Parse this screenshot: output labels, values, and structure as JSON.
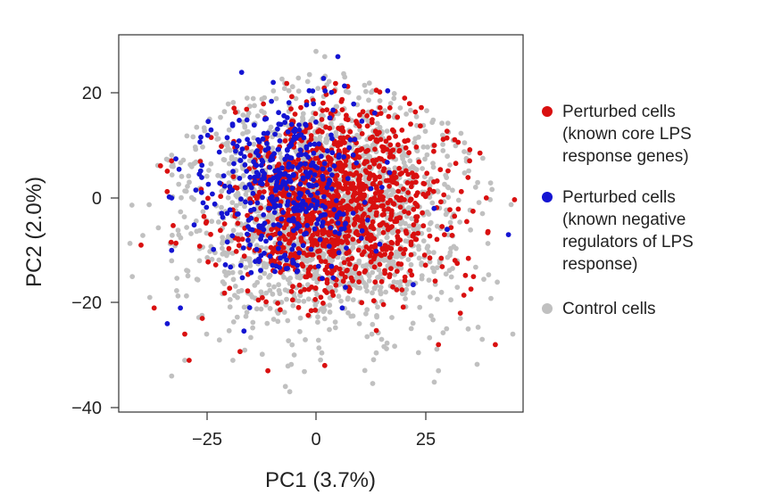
{
  "chart_data": {
    "type": "scatter",
    "title": "",
    "xlabel": "PC1 (3.7%)",
    "ylabel": "PC2 (2.0%)",
    "xlim": [
      -45,
      48
    ],
    "ylim": [
      -41,
      31
    ],
    "xticks": [
      -25,
      0,
      25
    ],
    "yticks": [
      20,
      0,
      -20,
      -40
    ],
    "xtick_labels": [
      "−25",
      "0",
      "25"
    ],
    "ytick_labels": [
      "20",
      "0",
      "−20",
      "−40"
    ],
    "grid": false,
    "legend_position": "right",
    "series": [
      {
        "name": "Control cells",
        "color": "#c0c0c0",
        "cluster": {
          "center": [
            2,
            -3
          ],
          "spread": [
            15,
            11
          ],
          "count": 1900,
          "seed": 11
        },
        "points": [
          [
            -33,
            -34
          ],
          [
            -30,
            -31
          ],
          [
            -25,
            -26
          ],
          [
            -19,
            -31
          ],
          [
            -6,
            -37
          ],
          [
            -7,
            -36
          ],
          [
            0,
            28
          ],
          [
            2,
            27
          ],
          [
            15,
            -27
          ],
          [
            28,
            -33
          ],
          [
            33,
            -23
          ],
          [
            38,
            -27
          ],
          [
            45,
            -26
          ],
          [
            -42,
            -15
          ],
          [
            -38,
            -19
          ],
          [
            -33,
            -12
          ]
        ]
      },
      {
        "name": "Perturbed cells (known core LPS response genes)",
        "color": "#d90f0f",
        "cluster": {
          "center": [
            4,
            -1
          ],
          "spread": [
            12,
            8.5
          ],
          "count": 1250,
          "seed": 29
        },
        "points": [
          [
            -40,
            -9
          ],
          [
            -37,
            -21
          ],
          [
            -29,
            -31
          ],
          [
            -11,
            -33
          ],
          [
            2,
            -32
          ],
          [
            28,
            -28
          ],
          [
            33,
            -22
          ],
          [
            36,
            -15
          ],
          [
            41,
            -28
          ],
          [
            -30,
            -26
          ],
          [
            -26,
            -23
          ]
        ]
      },
      {
        "name": "Perturbed cells (known negative regulators of LPS response)",
        "color": "#1414d2",
        "cluster": {
          "center": [
            -7,
            2
          ],
          "spread": [
            9,
            8
          ],
          "count": 420,
          "seed": 53
        },
        "points": [
          [
            -17,
            24
          ],
          [
            5,
            27
          ],
          [
            -24,
            13
          ],
          [
            -33,
            0
          ],
          [
            -33,
            -10
          ],
          [
            -34,
            -24
          ],
          [
            -31,
            -21
          ],
          [
            44,
            -7
          ],
          [
            6,
            -21
          ],
          [
            27,
            -2
          ],
          [
            30,
            -6
          ]
        ]
      }
    ]
  },
  "legend": {
    "core": [
      "Perturbed cells",
      "(known core LPS",
      "response genes)"
    ],
    "negative": [
      "Perturbed cells",
      "(known negative",
      "regulators of LPS",
      "response)"
    ],
    "control": [
      "Control cells"
    ]
  }
}
